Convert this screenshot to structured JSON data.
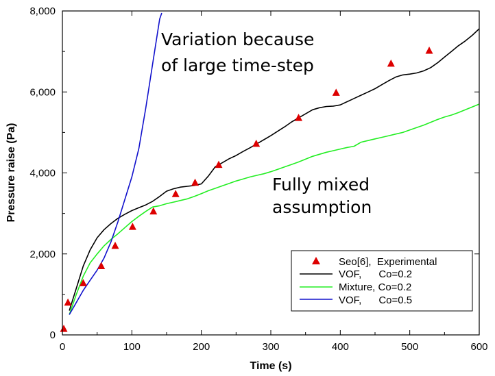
{
  "chart_data": {
    "type": "line",
    "title": "",
    "xlabel": "Time (s)",
    "ylabel": "Pressure raise (Pa)",
    "xlim": [
      0,
      600
    ],
    "ylim": [
      0,
      8000
    ],
    "xticks": [
      0,
      100,
      200,
      300,
      400,
      500,
      600
    ],
    "xtick_labels": [
      "0",
      "100",
      "200",
      "300",
      "400",
      "500",
      "600"
    ],
    "yticks": [
      0,
      2000,
      4000,
      6000,
      8000
    ],
    "ytick_labels": [
      "0",
      "2,000",
      "4,000",
      "6,000",
      "8,000"
    ],
    "grid": false,
    "legend_position": "bottom-right",
    "annotations": [
      {
        "lines": [
          "Variation because",
          "of large time-step"
        ]
      },
      {
        "lines": [
          "Fully mixed",
          "assumption"
        ]
      }
    ],
    "series": [
      {
        "name": "Seo[6],  Experimental",
        "kind": "marker",
        "color": "#dd0000",
        "x": [
          2,
          8,
          30,
          56,
          76,
          101,
          131,
          163,
          191,
          225,
          279,
          340,
          394,
          473,
          528
        ],
        "y": [
          150,
          800,
          1280,
          1700,
          2200,
          2670,
          3050,
          3480,
          3760,
          4200,
          4720,
          5360,
          5980,
          6700,
          7020
        ]
      },
      {
        "name": "VOF,      Co=0.2",
        "kind": "line",
        "color": "#000000",
        "x": [
          10,
          20,
          30,
          40,
          50,
          60,
          70,
          80,
          90,
          100,
          110,
          120,
          130,
          140,
          150,
          160,
          170,
          180,
          190,
          200,
          210,
          220,
          230,
          240,
          250,
          260,
          270,
          280,
          290,
          300,
          310,
          320,
          330,
          340,
          350,
          360,
          370,
          380,
          390,
          400,
          410,
          420,
          430,
          440,
          450,
          460,
          470,
          480,
          490,
          500,
          510,
          520,
          530,
          540,
          550,
          560,
          570,
          580,
          590,
          600
        ],
        "y": [
          600,
          1150,
          1700,
          2100,
          2400,
          2600,
          2750,
          2880,
          2980,
          3070,
          3140,
          3210,
          3300,
          3420,
          3550,
          3610,
          3650,
          3670,
          3690,
          3730,
          3920,
          4150,
          4250,
          4350,
          4430,
          4530,
          4620,
          4720,
          4820,
          4920,
          5030,
          5140,
          5260,
          5360,
          5460,
          5560,
          5610,
          5640,
          5650,
          5680,
          5760,
          5840,
          5920,
          6000,
          6080,
          6180,
          6280,
          6370,
          6420,
          6440,
          6470,
          6520,
          6600,
          6720,
          6860,
          7000,
          7140,
          7260,
          7400,
          7560
        ]
      },
      {
        "name": "Mixture, Co=0.2",
        "kind": "line",
        "color": "#22ee22",
        "x": [
          10,
          20,
          30,
          40,
          50,
          60,
          70,
          80,
          90,
          100,
          110,
          120,
          130,
          140,
          150,
          160,
          170,
          180,
          190,
          200,
          210,
          220,
          230,
          240,
          250,
          260,
          270,
          280,
          290,
          300,
          310,
          320,
          330,
          340,
          350,
          360,
          370,
          380,
          390,
          400,
          410,
          420,
          430,
          440,
          450,
          460,
          470,
          480,
          490,
          500,
          510,
          520,
          530,
          540,
          550,
          560,
          570,
          580,
          590,
          600
        ],
        "y": [
          500,
          1000,
          1450,
          1780,
          2000,
          2200,
          2360,
          2500,
          2650,
          2800,
          2930,
          3050,
          3160,
          3190,
          3240,
          3280,
          3320,
          3360,
          3420,
          3490,
          3560,
          3620,
          3680,
          3740,
          3800,
          3850,
          3900,
          3940,
          3980,
          4030,
          4090,
          4150,
          4210,
          4270,
          4340,
          4410,
          4460,
          4510,
          4550,
          4590,
          4630,
          4660,
          4760,
          4800,
          4840,
          4880,
          4920,
          4960,
          5000,
          5060,
          5120,
          5180,
          5250,
          5320,
          5380,
          5430,
          5490,
          5560,
          5630,
          5700
        ]
      },
      {
        "name": "VOF,      Co=0.5",
        "kind": "line",
        "color": "#1111cc",
        "x": [
          10,
          20,
          30,
          40,
          50,
          60,
          70,
          80,
          90,
          100,
          110,
          120,
          130,
          140,
          143
        ],
        "y": [
          500,
          800,
          1100,
          1350,
          1600,
          1900,
          2300,
          2800,
          3350,
          3900,
          4600,
          5600,
          6700,
          7800,
          7950
        ]
      }
    ]
  }
}
